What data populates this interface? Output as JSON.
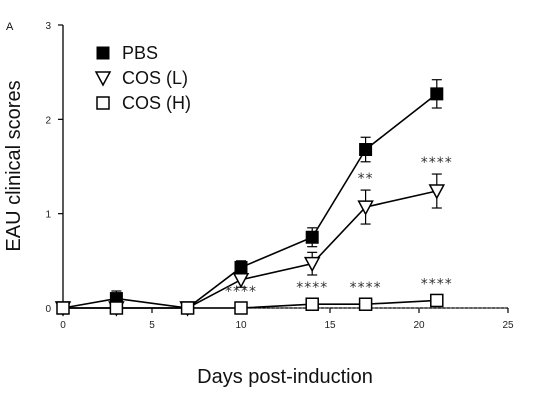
{
  "panel_label": "A",
  "chart_data": {
    "type": "line",
    "xlabel": "Days post-induction",
    "ylabel": "EAU clinical scores",
    "xlim": [
      0,
      25
    ],
    "ylim": [
      0,
      3
    ],
    "xticks": [
      0,
      5,
      10,
      15,
      20,
      25
    ],
    "yticks": [
      0,
      1,
      2,
      3
    ],
    "grid": false,
    "legend": "top-left",
    "baseline": {
      "y": 0,
      "style": "dotted"
    },
    "series": [
      {
        "name": "PBS",
        "marker": "filled-square",
        "color": "#000000",
        "x": [
          0,
          3,
          7,
          10,
          14,
          17,
          21
        ],
        "y": [
          0,
          0.1,
          0,
          0.43,
          0.75,
          1.68,
          2.27
        ],
        "err": [
          0,
          0.08,
          0.05,
          0.07,
          0.1,
          0.13,
          0.15
        ]
      },
      {
        "name": "COS (L)",
        "marker": "open-triangle-down",
        "color": "#000000",
        "x": [
          0,
          3,
          7,
          10,
          14,
          17,
          21
        ],
        "y": [
          0,
          0,
          0,
          0.3,
          0.47,
          1.07,
          1.24
        ],
        "err": [
          0,
          0.05,
          0.05,
          0.08,
          0.12,
          0.18,
          0.18
        ]
      },
      {
        "name": "COS (H)",
        "marker": "open-square",
        "color": "#000000",
        "x": [
          0,
          3,
          7,
          10,
          14,
          17,
          21
        ],
        "y": [
          0,
          0,
          0,
          0,
          0.04,
          0.04,
          0.08
        ],
        "err": [
          0,
          0.02,
          0.02,
          0.02,
          0.02,
          0.02,
          0.03
        ]
      }
    ],
    "annotations": [
      {
        "x": 17,
        "y": 1.07,
        "text": "**"
      },
      {
        "x": 21,
        "y": 1.24,
        "text": "****"
      },
      {
        "x": 10,
        "y": 0,
        "text": "****"
      },
      {
        "x": 14,
        "y": 0.04,
        "text": "****"
      },
      {
        "x": 17,
        "y": 0.04,
        "text": "****"
      },
      {
        "x": 21,
        "y": 0.08,
        "text": "****"
      }
    ]
  }
}
